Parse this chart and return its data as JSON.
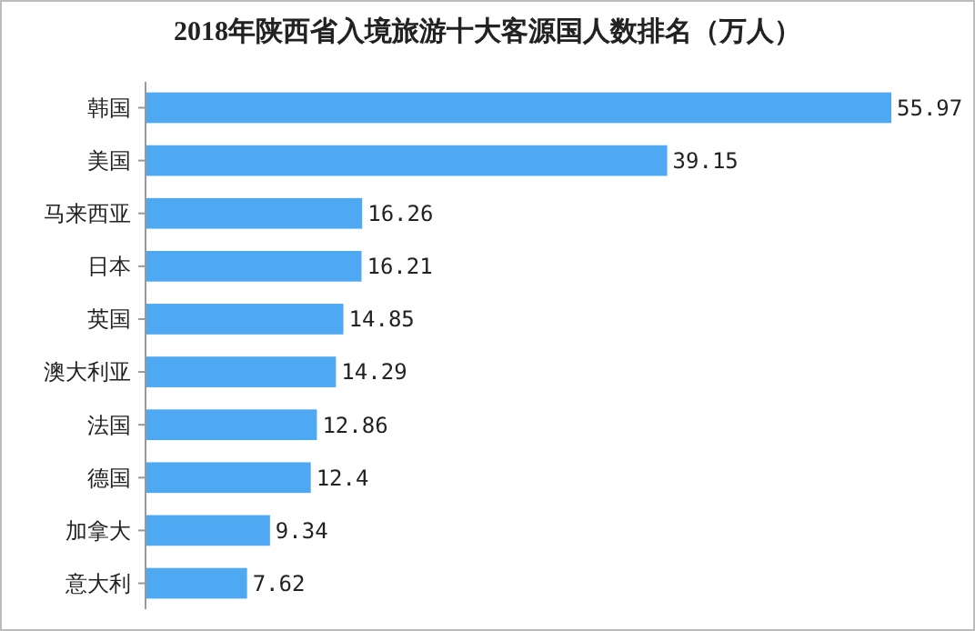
{
  "chart_data": {
    "type": "bar",
    "orientation": "horizontal",
    "title": "2018年陕西省入境旅游十大客源国人数排名（万人）",
    "categories": [
      "韩国",
      "美国",
      "马来西亚",
      "日本",
      "英国",
      "澳大利亚",
      "法国",
      "德国",
      "加拿大",
      "意大利"
    ],
    "values": [
      55.97,
      39.15,
      16.26,
      16.21,
      14.85,
      14.29,
      12.86,
      12.4,
      9.34,
      7.62
    ],
    "color": "#4ea8f2",
    "data_labels": true
  }
}
